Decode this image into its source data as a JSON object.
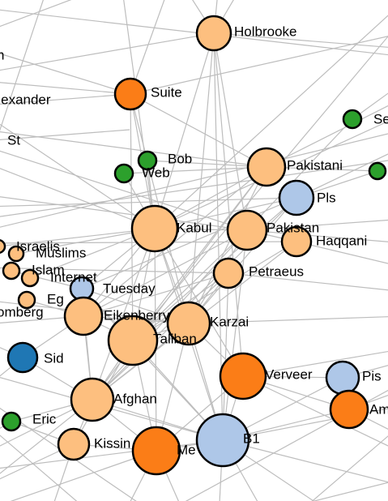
{
  "colors": {
    "light_orange": "#fdbf7f",
    "dark_orange": "#fb7d17",
    "green": "#2ca02c",
    "light_blue": "#aec7e8",
    "dark_blue": "#1f77b4",
    "edge": "#bdbdbd",
    "outline": "#000000"
  },
  "nodes": [
    {
      "id": "holbrooke",
      "label": "Holbrooke",
      "color": "light_orange"
    },
    {
      "id": "n-partial",
      "label": "n",
      "color": "none"
    },
    {
      "id": "alexander",
      "label": "Alexander",
      "color": "none"
    },
    {
      "id": "suite",
      "label": "Suite",
      "color": "dark_orange"
    },
    {
      "id": "st",
      "label": "St",
      "color": "none"
    },
    {
      "id": "se",
      "label": "Se",
      "color": "green"
    },
    {
      "id": "bob",
      "label": "Bob",
      "color": "green"
    },
    {
      "id": "web",
      "label": "Web",
      "color": "green"
    },
    {
      "id": "pakistani",
      "label": "Pakistani",
      "color": "light_orange"
    },
    {
      "id": "green-right",
      "label": "",
      "color": "green"
    },
    {
      "id": "pls",
      "label": "Pls",
      "color": "light_blue"
    },
    {
      "id": "kabul",
      "label": "Kabul",
      "color": "light_orange"
    },
    {
      "id": "pakistan",
      "label": "Pakistan",
      "color": "light_orange"
    },
    {
      "id": "haqqani",
      "label": "Haqqani",
      "color": "light_orange"
    },
    {
      "id": "israelis",
      "label": "Israelis",
      "color": "light_orange"
    },
    {
      "id": "muslims",
      "label": "Muslims",
      "color": "light_orange"
    },
    {
      "id": "islam",
      "label": "Islam",
      "color": "light_orange"
    },
    {
      "id": "internet",
      "label": "Internet",
      "color": "light_orange"
    },
    {
      "id": "petraeus",
      "label": "Petraeus",
      "color": "light_orange"
    },
    {
      "id": "tuesday",
      "label": "Tuesday",
      "color": "light_blue"
    },
    {
      "id": "eg",
      "label": "Eg",
      "color": "light_orange"
    },
    {
      "id": "omberg",
      "label": "omberg",
      "color": "light_orange"
    },
    {
      "id": "eikenberry",
      "label": "Eikenberry",
      "color": "light_orange"
    },
    {
      "id": "karzai",
      "label": "Karzai",
      "color": "light_orange"
    },
    {
      "id": "taliban",
      "label": "Taliban",
      "color": "light_orange"
    },
    {
      "id": "sid",
      "label": "Sid",
      "color": "dark_blue"
    },
    {
      "id": "verveer",
      "label": "Verveer",
      "color": "dark_orange"
    },
    {
      "id": "pis",
      "label": "Pis",
      "color": "light_blue"
    },
    {
      "id": "afghan",
      "label": "Afghan",
      "color": "light_orange"
    },
    {
      "id": "am",
      "label": "Am",
      "color": "dark_orange"
    },
    {
      "id": "eric",
      "label": "Eric",
      "color": "green"
    },
    {
      "id": "kissinger",
      "label": "Kissin",
      "color": "light_orange"
    },
    {
      "id": "me",
      "label": "Me",
      "color": "dark_orange"
    },
    {
      "id": "b1",
      "label": "B1",
      "color": "light_blue"
    }
  ]
}
